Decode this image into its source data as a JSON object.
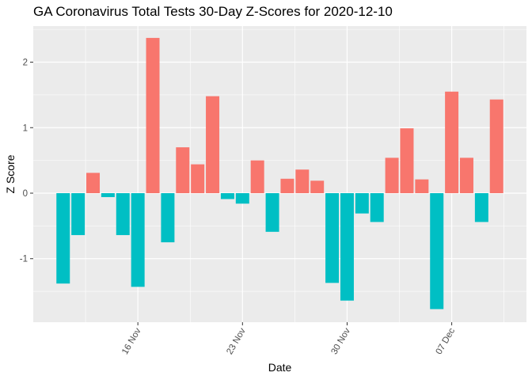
{
  "chart_data": {
    "type": "bar",
    "title": "GA Coronavirus Total Tests 30-Day Z-Scores for 2020-12-10",
    "xlabel": "Date",
    "ylabel": "Z Score",
    "x_ticks": [
      {
        "date": "2020-11-16",
        "label": "16 Nov"
      },
      {
        "date": "2020-11-23",
        "label": "23 Nov"
      },
      {
        "date": "2020-11-30",
        "label": "30 Nov"
      },
      {
        "date": "2020-12-07",
        "label": "07 Dec"
      }
    ],
    "y_ticks": [
      -1,
      0,
      1,
      2
    ],
    "ylim": [
      -1.97,
      2.55
    ],
    "xlim": [
      "2020-11-09",
      "2020-12-12"
    ],
    "grid": true,
    "legend": "none",
    "colors": {
      "positive": "#F8766D",
      "negative": "#00BFC4",
      "panel": "#EBEBEB",
      "grid": "#FFFFFF"
    },
    "categories": [
      "2020-11-11",
      "2020-11-12",
      "2020-11-13",
      "2020-11-14",
      "2020-11-15",
      "2020-11-16",
      "2020-11-17",
      "2020-11-18",
      "2020-11-19",
      "2020-11-20",
      "2020-11-21",
      "2020-11-22",
      "2020-11-23",
      "2020-11-24",
      "2020-11-25",
      "2020-11-26",
      "2020-11-27",
      "2020-11-28",
      "2020-11-29",
      "2020-11-30",
      "2020-12-01",
      "2020-12-02",
      "2020-12-03",
      "2020-12-04",
      "2020-12-05",
      "2020-12-06",
      "2020-12-07",
      "2020-12-08",
      "2020-12-09",
      "2020-12-10"
    ],
    "values": [
      -1.38,
      -0.64,
      0.31,
      -0.06,
      -0.64,
      -1.43,
      2.37,
      -0.75,
      0.7,
      0.44,
      1.48,
      -0.09,
      -0.16,
      0.5,
      -0.59,
      0.22,
      0.36,
      0.19,
      -1.37,
      -1.64,
      -0.31,
      -0.44,
      0.54,
      0.99,
      0.21,
      -1.77,
      1.55,
      0.54,
      -0.44,
      1.43
    ]
  }
}
